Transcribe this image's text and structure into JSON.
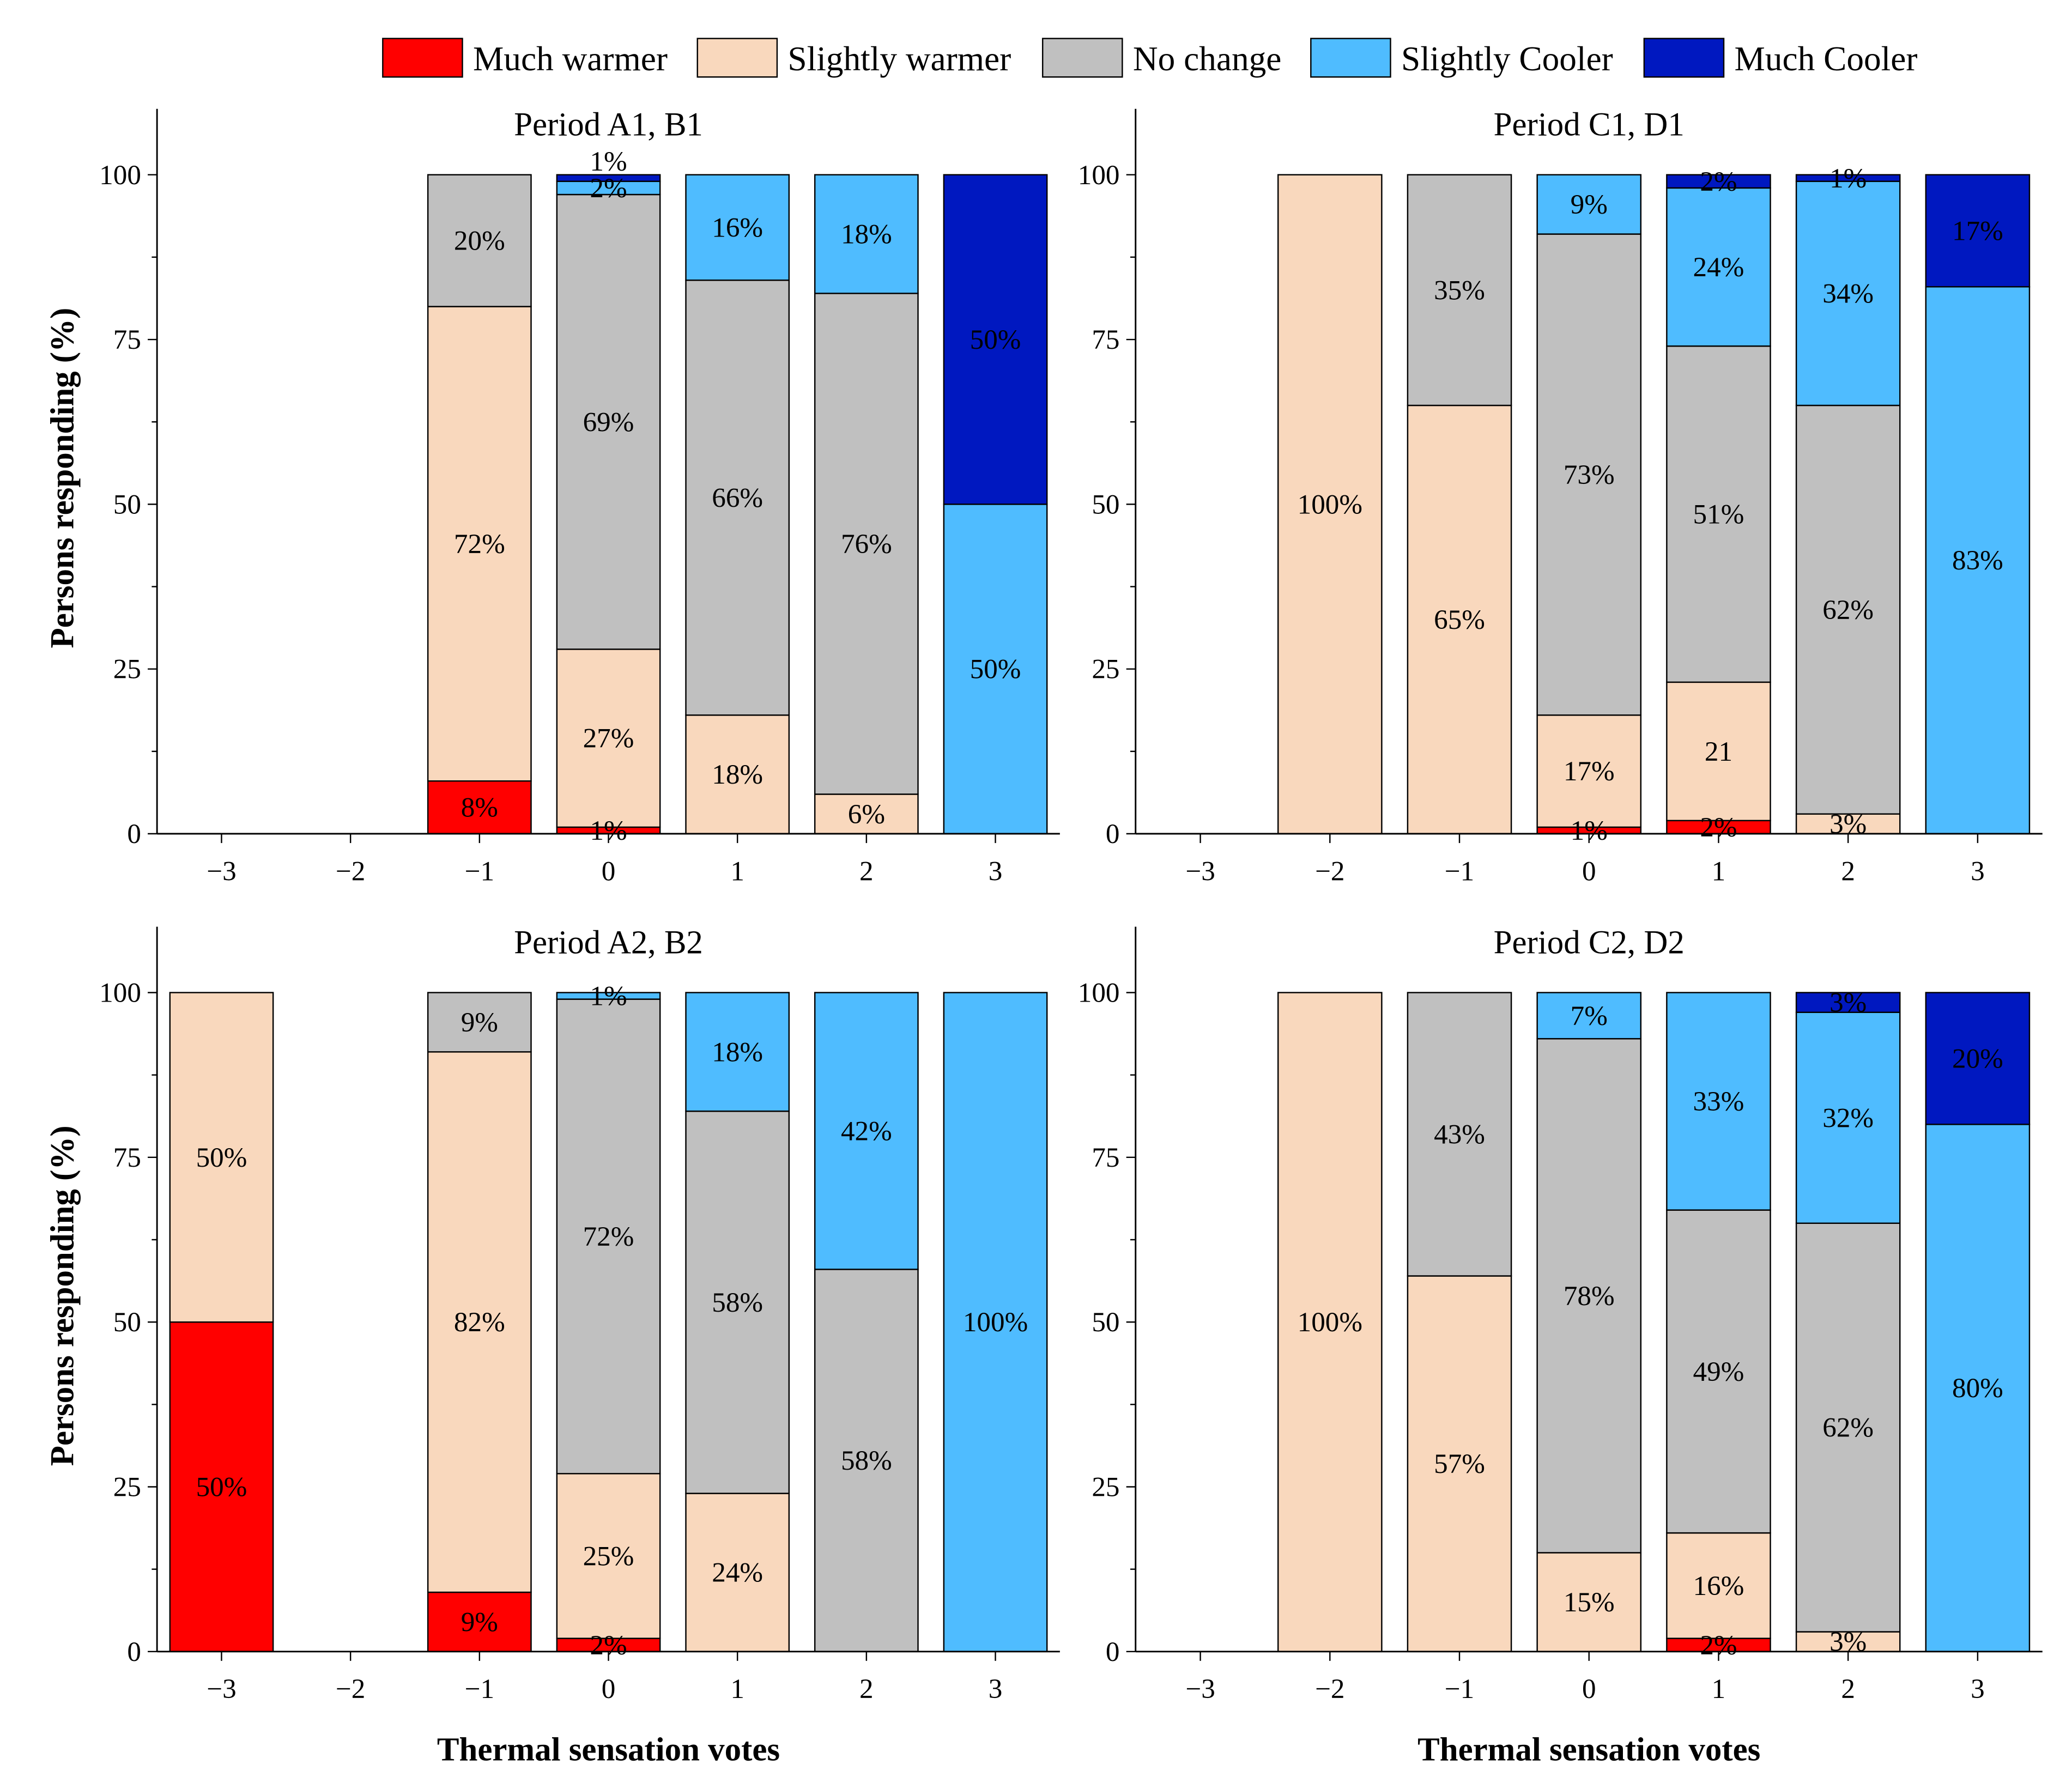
{
  "legend": [
    {
      "name": "Much warmer",
      "color": "#ff0000"
    },
    {
      "name": "Slightly warmer",
      "color": "#f9d8bd"
    },
    {
      "name": "No change",
      "color": "#c0c0c0"
    },
    {
      "name": "Slightly Cooler",
      "color": "#4fbcff"
    },
    {
      "name": "Much Cooler",
      "color": "#0018c0"
    }
  ],
  "chart_data": [
    {
      "type": "bar",
      "stacked": true,
      "title": "Period A1, B1",
      "xlabel": "",
      "ylabel": "Persons responding  (%)",
      "categories": [
        -3,
        -2,
        -1,
        0,
        1,
        2,
        3
      ],
      "tick_labels": [
        "−3",
        "−2",
        "−1",
        "0",
        "1",
        "2",
        "3"
      ],
      "y_ticks": [
        0,
        25,
        50,
        75,
        100
      ],
      "ylim": [
        0,
        110
      ],
      "bars": [
        {
          "x": -1,
          "segments": [
            {
              "s": 0,
              "v": 8,
              "label": "8%"
            },
            {
              "s": 1,
              "v": 72,
              "label": "72%"
            },
            {
              "s": 2,
              "v": 20,
              "label": "20%"
            }
          ]
        },
        {
          "x": 0,
          "segments": [
            {
              "s": 0,
              "v": 1,
              "label": "1%"
            },
            {
              "s": 1,
              "v": 27,
              "label": "27%"
            },
            {
              "s": 2,
              "v": 69,
              "label": "69%"
            },
            {
              "s": 3,
              "v": 2,
              "label": "2%"
            },
            {
              "s": 4,
              "v": 1,
              "label": "1%"
            }
          ]
        },
        {
          "x": 1,
          "segments": [
            {
              "s": 1,
              "v": 18,
              "label": "18%"
            },
            {
              "s": 2,
              "v": 66,
              "label": "66%"
            },
            {
              "s": 3,
              "v": 16,
              "label": "16%"
            }
          ]
        },
        {
          "x": 2,
          "segments": [
            {
              "s": 1,
              "v": 6,
              "label": "6%"
            },
            {
              "s": 2,
              "v": 76,
              "label": "76%"
            },
            {
              "s": 3,
              "v": 18,
              "label": "18%"
            }
          ]
        },
        {
          "x": 3,
          "segments": [
            {
              "s": 3,
              "v": 50,
              "label": "50%"
            },
            {
              "s": 4,
              "v": 50,
              "label": "50%"
            }
          ]
        }
      ]
    },
    {
      "type": "bar",
      "stacked": true,
      "title": "Period C1, D1",
      "xlabel": "",
      "ylabel": "",
      "categories": [
        -3,
        -2,
        -1,
        0,
        1,
        2,
        3
      ],
      "tick_labels": [
        "−3",
        "−2",
        "−1",
        "0",
        "1",
        "2",
        "3"
      ],
      "y_ticks": [
        0,
        25,
        50,
        75,
        100
      ],
      "ylim": [
        0,
        110
      ],
      "bars": [
        {
          "x": -2,
          "segments": [
            {
              "s": 1,
              "v": 100,
              "label": "100%"
            }
          ]
        },
        {
          "x": -1,
          "segments": [
            {
              "s": 1,
              "v": 65,
              "label": "65%"
            },
            {
              "s": 2,
              "v": 35,
              "label": "35%"
            }
          ]
        },
        {
          "x": 0,
          "segments": [
            {
              "s": 0,
              "v": 1,
              "label": "1%"
            },
            {
              "s": 1,
              "v": 17,
              "label": "17%"
            },
            {
              "s": 2,
              "v": 73,
              "label": "73%"
            },
            {
              "s": 3,
              "v": 9,
              "label": "9%"
            }
          ]
        },
        {
          "x": 1,
          "segments": [
            {
              "s": 0,
              "v": 2,
              "label": "2%"
            },
            {
              "s": 1,
              "v": 21,
              "label": "21"
            },
            {
              "s": 2,
              "v": 51,
              "label": "51%"
            },
            {
              "s": 3,
              "v": 24,
              "label": "24%"
            },
            {
              "s": 4,
              "v": 2,
              "label": "2%"
            }
          ]
        },
        {
          "x": 2,
          "segments": [
            {
              "s": 1,
              "v": 3,
              "label": "3%"
            },
            {
              "s": 2,
              "v": 62,
              "label": "62%"
            },
            {
              "s": 3,
              "v": 34,
              "label": "34%"
            },
            {
              "s": 4,
              "v": 1,
              "label": "1%"
            }
          ]
        },
        {
          "x": 3,
          "segments": [
            {
              "s": 3,
              "v": 83,
              "label": "83%"
            },
            {
              "s": 4,
              "v": 17,
              "label": "17%"
            }
          ]
        }
      ]
    },
    {
      "type": "bar",
      "stacked": true,
      "title": "Period A2, B2",
      "xlabel": "Thermal sensation votes",
      "ylabel": "Persons responding  (%)",
      "categories": [
        -3,
        -2,
        -1,
        0,
        1,
        2,
        3
      ],
      "tick_labels": [
        "−3",
        "−2",
        "−1",
        "0",
        "1",
        "2",
        "3"
      ],
      "y_ticks": [
        0,
        25,
        50,
        75,
        100
      ],
      "ylim": [
        0,
        110
      ],
      "bars": [
        {
          "x": -3,
          "segments": [
            {
              "s": 0,
              "v": 50,
              "label": "50%"
            },
            {
              "s": 1,
              "v": 50,
              "label": "50%"
            }
          ]
        },
        {
          "x": -1,
          "segments": [
            {
              "s": 0,
              "v": 9,
              "label": "9%"
            },
            {
              "s": 1,
              "v": 82,
              "label": "82%"
            },
            {
              "s": 2,
              "v": 9,
              "label": "9%"
            }
          ]
        },
        {
          "x": 0,
          "segments": [
            {
              "s": 0,
              "v": 2,
              "label": "2%"
            },
            {
              "s": 1,
              "v": 25,
              "label": "25%"
            },
            {
              "s": 2,
              "v": 72,
              "label": "72%"
            },
            {
              "s": 3,
              "v": 1,
              "label": "1%"
            }
          ]
        },
        {
          "x": 1,
          "segments": [
            {
              "s": 1,
              "v": 24,
              "label": "24%"
            },
            {
              "s": 2,
              "v": 58,
              "label": "58%"
            },
            {
              "s": 3,
              "v": 18,
              "label": "18%"
            }
          ]
        },
        {
          "x": 2,
          "segments": [
            {
              "s": 2,
              "v": 58,
              "label": "58%"
            },
            {
              "s": 3,
              "v": 42,
              "label": "42%"
            }
          ]
        },
        {
          "x": 3,
          "segments": [
            {
              "s": 3,
              "v": 100,
              "label": "100%"
            }
          ]
        }
      ]
    },
    {
      "type": "bar",
      "stacked": true,
      "title": "Period C2, D2",
      "xlabel": "Thermal sensation votes",
      "ylabel": "",
      "categories": [
        -3,
        -2,
        -1,
        0,
        1,
        2,
        3
      ],
      "tick_labels": [
        "−3",
        "−2",
        "−1",
        "0",
        "1",
        "2",
        "3"
      ],
      "y_ticks": [
        0,
        25,
        50,
        75,
        100
      ],
      "ylim": [
        0,
        110
      ],
      "bars": [
        {
          "x": -2,
          "segments": [
            {
              "s": 1,
              "v": 100,
              "label": "100%"
            }
          ]
        },
        {
          "x": -1,
          "segments": [
            {
              "s": 1,
              "v": 57,
              "label": "57%"
            },
            {
              "s": 2,
              "v": 43,
              "label": "43%"
            }
          ]
        },
        {
          "x": 0,
          "segments": [
            {
              "s": 1,
              "v": 15,
              "label": "15%"
            },
            {
              "s": 2,
              "v": 78,
              "label": "78%"
            },
            {
              "s": 3,
              "v": 7,
              "label": "7%"
            }
          ]
        },
        {
          "x": 1,
          "segments": [
            {
              "s": 0,
              "v": 2,
              "label": "2%"
            },
            {
              "s": 1,
              "v": 16,
              "label": "16%"
            },
            {
              "s": 2,
              "v": 49,
              "label": "49%"
            },
            {
              "s": 3,
              "v": 33,
              "label": "33%"
            }
          ]
        },
        {
          "x": 2,
          "segments": [
            {
              "s": 1,
              "v": 3,
              "label": "3%"
            },
            {
              "s": 2,
              "v": 62,
              "label": "62%"
            },
            {
              "s": 3,
              "v": 32,
              "label": "32%"
            },
            {
              "s": 4,
              "v": 3,
              "label": "3%"
            }
          ]
        },
        {
          "x": 3,
          "segments": [
            {
              "s": 3,
              "v": 80,
              "label": "80%"
            },
            {
              "s": 4,
              "v": 20,
              "label": "20%"
            }
          ]
        }
      ]
    }
  ]
}
